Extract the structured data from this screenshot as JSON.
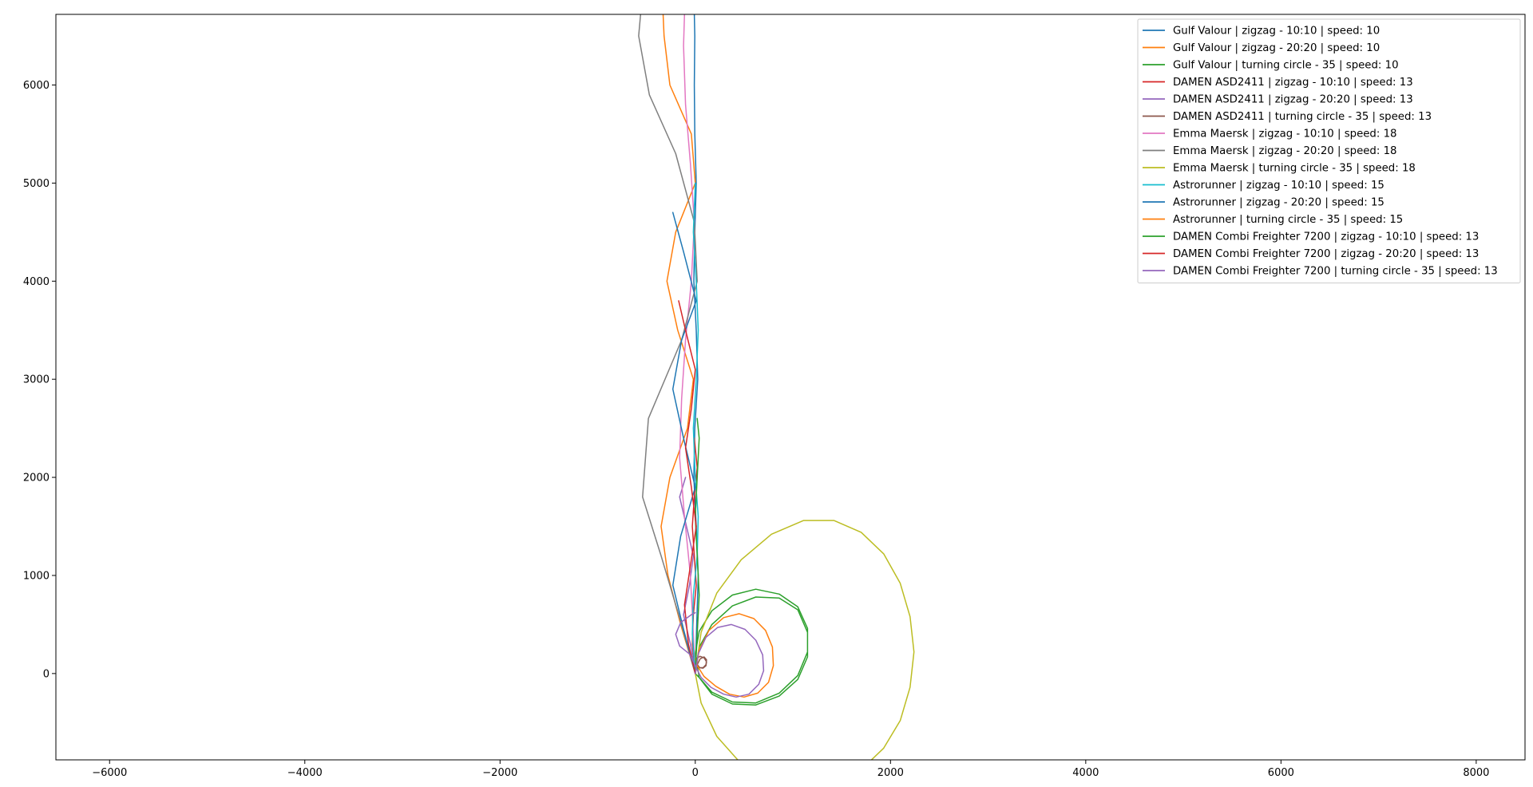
{
  "chart_data": {
    "type": "line",
    "title": "",
    "xlabel": "",
    "ylabel": "",
    "xlim": [
      -6550,
      8500
    ],
    "ylim": [
      -880,
      6720
    ],
    "xticks": [
      -6000,
      -4000,
      -2000,
      0,
      2000,
      4000,
      6000,
      8000
    ],
    "yticks": [
      0,
      1000,
      2000,
      3000,
      4000,
      5000,
      6000
    ],
    "xtick_labels": [
      "−6000",
      "−4000",
      "−2000",
      "0",
      "2000",
      "4000",
      "6000",
      "8000"
    ],
    "ytick_labels": [
      "0",
      "1000",
      "2000",
      "3000",
      "4000",
      "5000",
      "6000"
    ],
    "grid": false,
    "legend_position": "top-right",
    "series": [
      {
        "name": "Gulf Valour | zigzag - 10:10 | speed: 10",
        "color": "#1f77b4",
        "x": [
          0,
          15,
          30,
          10,
          -15,
          -5,
          25,
          10,
          -15,
          -5,
          10,
          -5,
          -10,
          -5,
          -10
        ],
        "y": [
          0,
          500,
          1000,
          1500,
          2000,
          2500,
          3000,
          3500,
          4000,
          4500,
          5000,
          5500,
          6000,
          6500,
          6720
        ]
      },
      {
        "name": "Gulf Valour | zigzag - 20:20 | speed: 10",
        "color": "#ff7f0e",
        "x": [
          0,
          -150,
          -280,
          -350,
          -260,
          -80,
          -20,
          -180,
          -290,
          -200,
          0,
          -40,
          -260,
          -320,
          -330
        ],
        "y": [
          0,
          500,
          1000,
          1500,
          2000,
          2500,
          3000,
          3500,
          4000,
          4500,
          5000,
          5500,
          6000,
          6500,
          6720
        ]
      },
      {
        "name": "Gulf Valour | turning circle - 35 | speed: 10",
        "color": "#2ca02c",
        "x": [
          0,
          40,
          170,
          380,
          620,
          860,
          1050,
          1150,
          1150,
          1050,
          860,
          620,
          380,
          170,
          40,
          0,
          40,
          170,
          380,
          620,
          860,
          1050,
          1150,
          1150,
          1050,
          860,
          620,
          380,
          170,
          40,
          0
        ],
        "y": [
          0,
          270,
          500,
          690,
          780,
          770,
          650,
          420,
          170,
          -60,
          -230,
          -320,
          -310,
          -210,
          -40,
          200,
          430,
          640,
          800,
          860,
          810,
          680,
          460,
          220,
          -20,
          -200,
          -300,
          -290,
          -190,
          -40,
          0
        ]
      },
      {
        "name": "DAMEN ASD2411 | zigzag - 10:10 | speed: 13",
        "color": "#d62728",
        "x": [
          0,
          -30,
          -20,
          10,
          -10,
          -30,
          -10,
          20,
          -10
        ],
        "y": [
          0,
          300,
          600,
          900,
          1200,
          1500,
          1800,
          2100,
          2400
        ]
      },
      {
        "name": "DAMEN ASD2411 | zigzag - 20:20 | speed: 13",
        "color": "#9467bd",
        "x": [
          0,
          -50,
          -120,
          -60,
          -20,
          -90,
          -160,
          -100
        ],
        "y": [
          0,
          300,
          600,
          900,
          1200,
          1500,
          1800,
          2000
        ]
      },
      {
        "name": "DAMEN ASD2411 | turning circle - 35 | speed: 13",
        "color": "#8c564b",
        "x": [
          0,
          20,
          50,
          90,
          115,
          110,
          80,
          45,
          15,
          5,
          20,
          50,
          90,
          115,
          110,
          80,
          45,
          15,
          0
        ],
        "y": [
          0,
          90,
          150,
          170,
          140,
          90,
          60,
          60,
          90,
          130,
          160,
          175,
          160,
          120,
          80,
          55,
          60,
          100,
          130
        ]
      },
      {
        "name": "Emma Maersk | zigzag - 10:10 | speed: 18",
        "color": "#e377c2",
        "x": [
          0,
          -20,
          -50,
          -110,
          -160,
          -140,
          -100,
          -40,
          -10,
          -50,
          -100,
          -120,
          -110
        ],
        "y": [
          0,
          400,
          1000,
          1600,
          2200,
          2800,
          3400,
          4000,
          4600,
          5200,
          5800,
          6400,
          6720
        ]
      },
      {
        "name": "Emma Maersk | zigzag - 20:20 | speed: 18",
        "color": "#7f7f7f",
        "x": [
          0,
          -170,
          -350,
          -540,
          -480,
          -140,
          20,
          -10,
          -200,
          -470,
          -580,
          -560
        ],
        "y": [
          0,
          600,
          1200,
          1800,
          2600,
          3400,
          4000,
          4600,
          5300,
          5900,
          6500,
          6720
        ]
      },
      {
        "name": "Emma Maersk | turning circle - 35 | speed: 18",
        "color": "#bcbd22",
        "x": [
          0,
          60,
          220,
          470,
          780,
          1110,
          1420,
          1700,
          1930,
          2100,
          2200,
          2240,
          2200,
          2100,
          1930,
          1700,
          1420,
          1110,
          780,
          470,
          220,
          60,
          0
        ],
        "y": [
          0,
          420,
          820,
          1160,
          1420,
          1560,
          1560,
          1440,
          1220,
          920,
          580,
          220,
          -140,
          -480,
          -760,
          -980,
          -1110,
          -1150,
          -1090,
          -920,
          -640,
          -300,
          0
        ]
      },
      {
        "name": "Astrorunner | zigzag - 10:10 | speed: 15",
        "color": "#17becf",
        "x": [
          0,
          -30,
          -20,
          20,
          30,
          0,
          -20,
          10,
          30,
          10,
          -20,
          0
        ],
        "y": [
          0,
          400,
          800,
          1200,
          1600,
          2000,
          2500,
          3000,
          3500,
          4000,
          4500,
          5000
        ]
      },
      {
        "name": "Astrorunner | zigzag - 20:20 | speed: 15",
        "color": "#1f77b4",
        "x": [
          0,
          -120,
          -230,
          -150,
          0,
          -120,
          -230,
          -140,
          10,
          -120,
          -230
        ],
        "y": [
          0,
          450,
          900,
          1400,
          1900,
          2400,
          2900,
          3400,
          3800,
          4300,
          4700
        ]
      },
      {
        "name": "Astrorunner | turning circle - 35 | speed: 15",
        "color": "#ff7f0e",
        "x": [
          0,
          40,
          140,
          290,
          450,
          600,
          720,
          790,
          800,
          750,
          640,
          500,
          350,
          210,
          90,
          20,
          0
        ],
        "y": [
          0,
          240,
          440,
          570,
          610,
          560,
          440,
          270,
          80,
          -90,
          -200,
          -240,
          -210,
          -130,
          -30,
          80,
          150
        ]
      },
      {
        "name": "DAMEN Combi Freighter 7200 | zigzag - 10:10 | speed: 13",
        "color": "#2ca02c",
        "x": [
          0,
          20,
          40,
          20,
          0,
          20,
          40,
          20
        ],
        "y": [
          0,
          400,
          800,
          1200,
          1600,
          2000,
          2400,
          2600
        ]
      },
      {
        "name": "DAMEN Combi Freighter 7200 | zigzag - 20:20 | speed: 13",
        "color": "#d62728",
        "x": [
          0,
          -70,
          -110,
          -50,
          10,
          -40,
          -100,
          -40,
          0,
          -100,
          -170
        ],
        "y": [
          0,
          300,
          700,
          1100,
          1500,
          1900,
          2300,
          2700,
          3100,
          3500,
          3800
        ]
      },
      {
        "name": "DAMEN Combi Freighter 7200 | turning circle - 35 | speed: 13",
        "color": "#9467bd",
        "x": [
          0,
          30,
          110,
          230,
          370,
          510,
          620,
          690,
          700,
          650,
          550,
          420,
          290,
          160,
          60,
          10,
          -60,
          -160,
          -200,
          -150,
          -40,
          0
        ],
        "y": [
          0,
          200,
          370,
          470,
          500,
          450,
          340,
          190,
          30,
          -110,
          -210,
          -240,
          -210,
          -140,
          -40,
          60,
          200,
          280,
          400,
          520,
          600,
          620
        ]
      }
    ]
  }
}
